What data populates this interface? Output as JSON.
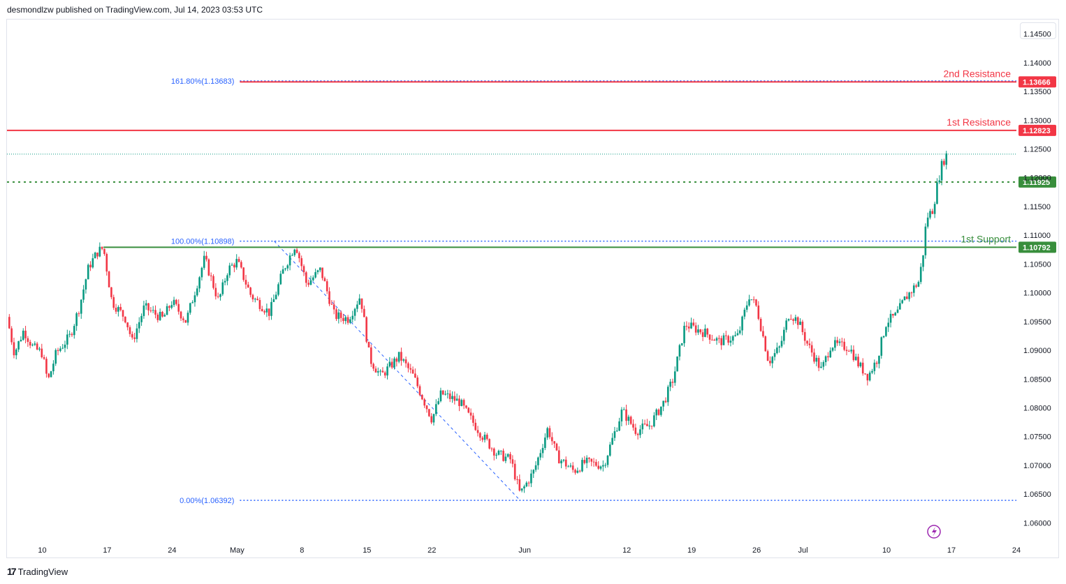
{
  "header": {
    "publisher": "desmondlzw published on TradingView.com, Jul 14, 2023 03:53 UTC"
  },
  "footer": {
    "brand": "TradingView"
  },
  "colors": {
    "up": "#089981",
    "down": "#f23645",
    "resistance": "#f23645",
    "support": "#388e3c",
    "fib": "#2962ff"
  },
  "chart_data": {
    "type": "candlestick",
    "symbol_interval": "4h",
    "ylim": [
      1.0575,
      1.1475
    ],
    "y_ticks": [
      "1.06000",
      "1.06500",
      "1.07000",
      "1.07500",
      "1.08000",
      "1.08500",
      "1.09000",
      "1.09500",
      "1.10000",
      "1.10500",
      "1.11000",
      "1.11500",
      "1.12000",
      "1.12500",
      "1.13000",
      "1.13500",
      "1.14000",
      "1.14500"
    ],
    "x_ticks": [
      {
        "label": "10",
        "day": 0
      },
      {
        "label": "17",
        "day": 7
      },
      {
        "label": "24",
        "day": 14
      },
      {
        "label": "May",
        "day": 21
      },
      {
        "label": "8",
        "day": 28
      },
      {
        "label": "15",
        "day": 35
      },
      {
        "label": "22",
        "day": 42
      },
      {
        "label": "Jun",
        "day": 52
      },
      {
        "label": "12",
        "day": 63
      },
      {
        "label": "19",
        "day": 70
      },
      {
        "label": "26",
        "day": 77
      },
      {
        "label": "Jul",
        "day": 82
      },
      {
        "label": "10",
        "day": 91
      },
      {
        "label": "17",
        "day": 98
      },
      {
        "label": "24",
        "day": 105
      }
    ],
    "xlim_days": [
      -3.8,
      105
    ],
    "levels": [
      {
        "name": "2nd Resistance",
        "value": 1.13666,
        "tag": "1.13666",
        "kind": "resistance"
      },
      {
        "name": "1st Resistance",
        "value": 1.12823,
        "tag": "1.12823",
        "kind": "resistance"
      },
      {
        "name": "",
        "value": 1.11925,
        "tag": "1.11925",
        "kind": "pivot"
      },
      {
        "name": "1st Support",
        "value": 1.10792,
        "tag": "1.10792",
        "kind": "support"
      }
    ],
    "fibonacci": [
      {
        "label": "161.80%(1.13683)",
        "value": 1.13683
      },
      {
        "label": "100.00%(1.10898)",
        "value": 1.10898
      },
      {
        "label": "0.00%(1.06392)",
        "value": 1.06392
      }
    ],
    "fib_start_day": 21.3,
    "fib_anchor": {
      "day_high": 25,
      "high": 1.10898,
      "day_low": 51.5,
      "low": 1.06392
    },
    "last_price_level": 1.1241,
    "path": [
      [
        -3.8,
        1.0958
      ],
      [
        -3,
        1.0895
      ],
      [
        -2,
        1.0935
      ],
      [
        -1,
        1.0905
      ],
      [
        0,
        1.0895
      ],
      [
        0.6,
        1.0845
      ],
      [
        1.5,
        1.0895
      ],
      [
        3,
        1.0925
      ],
      [
        4,
        1.0975
      ],
      [
        5,
        1.1045
      ],
      [
        6,
        1.1072
      ],
      [
        6.6,
        1.1078
      ],
      [
        7.5,
        1.0985
      ],
      [
        9,
        1.0955
      ],
      [
        9.7,
        1.0915
      ],
      [
        11,
        1.0975
      ],
      [
        13,
        1.0955
      ],
      [
        14,
        1.0985
      ],
      [
        15.5,
        1.095
      ],
      [
        17.5,
        1.106
      ],
      [
        19,
        1.0985
      ],
      [
        20,
        1.104
      ],
      [
        21,
        1.1055
      ],
      [
        22.5,
        1.0995
      ],
      [
        24.5,
        1.0965
      ],
      [
        26,
        1.104
      ],
      [
        27.3,
        1.1085
      ],
      [
        28.5,
        1.1015
      ],
      [
        30,
        1.104
      ],
      [
        31.5,
        1.096
      ],
      [
        33,
        1.0955
      ],
      [
        34.3,
        1.0995
      ],
      [
        35.3,
        1.0885
      ],
      [
        36.5,
        1.0855
      ],
      [
        38.5,
        1.089
      ],
      [
        40,
        1.0855
      ],
      [
        42,
        1.078
      ],
      [
        43,
        1.0825
      ],
      [
        45,
        1.081
      ],
      [
        46,
        1.0785
      ],
      [
        47.5,
        1.075
      ],
      [
        49,
        1.072
      ],
      [
        50.5,
        1.071
      ],
      [
        51.5,
        1.065
      ],
      [
        53,
        1.069
      ],
      [
        54.5,
        1.0765
      ],
      [
        55.5,
        1.0715
      ],
      [
        57.3,
        1.069
      ],
      [
        58.5,
        1.0705
      ],
      [
        60.5,
        1.07
      ],
      [
        62.5,
        1.0795
      ],
      [
        64,
        1.076
      ],
      [
        65.5,
        1.077
      ],
      [
        67,
        1.081
      ],
      [
        68,
        1.085
      ],
      [
        69.3,
        1.0945
      ],
      [
        71.5,
        1.093
      ],
      [
        73,
        1.0915
      ],
      [
        75,
        1.0925
      ],
      [
        76.2,
        1.0995
      ],
      [
        77,
        1.0975
      ],
      [
        78.3,
        1.088
      ],
      [
        79.5,
        1.0905
      ],
      [
        80.5,
        1.0965
      ],
      [
        81.5,
        1.095
      ],
      [
        82.5,
        1.091
      ],
      [
        84,
        1.0865
      ],
      [
        85,
        1.091
      ],
      [
        87,
        1.0905
      ],
      [
        88,
        1.0875
      ],
      [
        89,
        1.0855
      ],
      [
        90,
        1.0885
      ],
      [
        91,
        1.095
      ],
      [
        92,
        1.096
      ],
      [
        93,
        1.099
      ],
      [
        94,
        1.101
      ],
      [
        94.5,
        1.102
      ],
      [
        95,
        1.1075
      ],
      [
        95.3,
        1.113
      ],
      [
        96,
        1.1145
      ],
      [
        96.5,
        1.119
      ],
      [
        97,
        1.1225
      ],
      [
        97.5,
        1.1241
      ]
    ]
  }
}
